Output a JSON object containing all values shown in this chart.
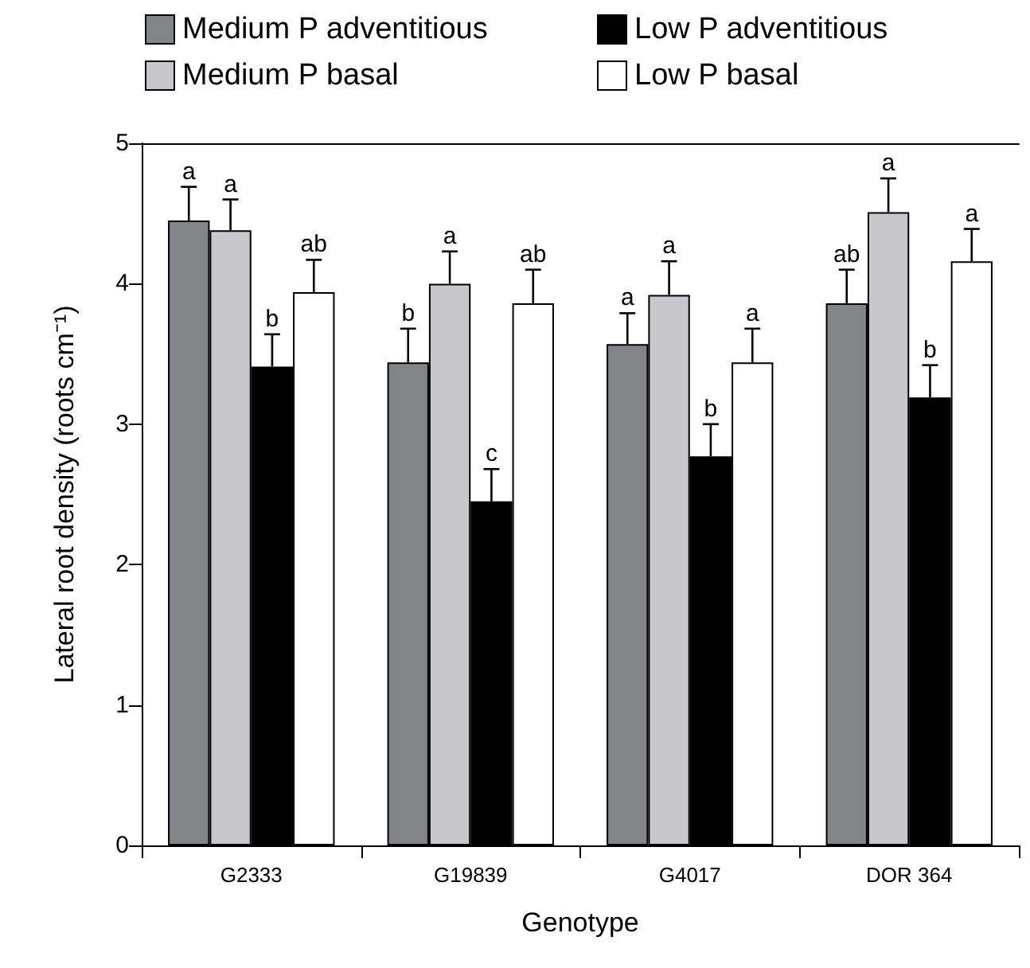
{
  "chart_data": {
    "type": "bar",
    "xlabel": "Genotype",
    "ylabel": "Lateral root density (roots cm⁻¹)",
    "categories": [
      "G2333",
      "G19839",
      "G4017",
      "DOR 364"
    ],
    "series": [
      {
        "name": "Medium P adventitious",
        "color": "#838487",
        "values": [
          4.45,
          3.44,
          3.57,
          3.86
        ],
        "errors": [
          [
            4.45,
            4.69
          ],
          [
            3.44,
            3.68
          ],
          [
            3.57,
            3.79
          ],
          [
            3.86,
            4.1
          ]
        ],
        "value_labels": [
          "a",
          "b",
          "a",
          "ab"
        ]
      },
      {
        "name": "Medium P basal",
        "color": "#c8c7cc",
        "values": [
          4.38,
          4.0,
          3.92,
          4.51
        ],
        "errors": [
          [
            4.38,
            4.6
          ],
          [
            4.0,
            4.23
          ],
          [
            3.92,
            4.16
          ],
          [
            4.51,
            4.75
          ]
        ],
        "value_labels": [
          "a",
          "a",
          "a",
          "a"
        ]
      },
      {
        "name": "Low P adventitious",
        "color": "#000000",
        "values": [
          3.41,
          2.45,
          2.77,
          3.19
        ],
        "errors": [
          [
            3.41,
            3.64
          ],
          [
            2.45,
            2.68
          ],
          [
            2.77,
            3.0
          ],
          [
            3.19,
            3.42
          ]
        ],
        "value_labels": [
          "b",
          "c",
          "b",
          "b"
        ]
      },
      {
        "name": "Low P basal",
        "color": "#ffffff",
        "values": [
          3.94,
          3.86,
          3.44,
          4.16
        ],
        "errors": [
          [
            3.94,
            4.17
          ],
          [
            3.86,
            4.1
          ],
          [
            3.44,
            3.68
          ],
          [
            4.16,
            4.39
          ]
        ],
        "value_labels": [
          "ab",
          "ab",
          "a",
          "a"
        ]
      }
    ],
    "ylim": [
      0,
      5
    ],
    "yticks": [
      0,
      1,
      2,
      3,
      4,
      5
    ],
    "grid": false,
    "legend": "top"
  }
}
